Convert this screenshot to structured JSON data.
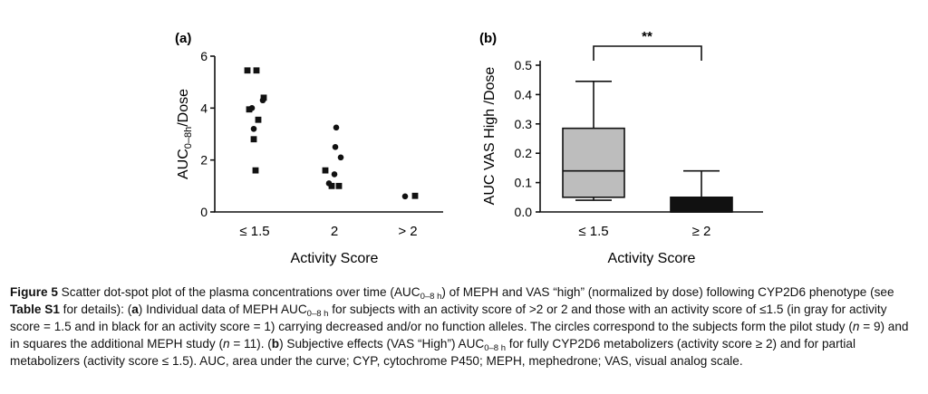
{
  "figure": {
    "panel_a_label": "(a)",
    "panel_b_label": "(b)"
  },
  "chart_data": [
    {
      "type": "scatter",
      "panel": "(a)",
      "ylabel": "AUC",
      "ylabel_sub": "0–8h",
      "ylabel_suffix": "/Dose",
      "xlabel": "Activity Score",
      "categories": [
        "≤ 1.5",
        "2",
        "> 2"
      ],
      "ylim": [
        0,
        6
      ],
      "yticks": [
        0,
        2,
        4,
        6
      ],
      "series": [
        {
          "name": "circles",
          "points": [
            {
              "x": "≤ 1.5",
              "y": 4.3
            },
            {
              "x": "≤ 1.5",
              "y": 4.0
            },
            {
              "x": "≤ 1.5",
              "y": 3.2
            },
            {
              "x": "2",
              "y": 3.25
            },
            {
              "x": "2",
              "y": 2.5
            },
            {
              "x": "2",
              "y": 2.1
            },
            {
              "x": "2",
              "y": 1.45
            },
            {
              "x": "2",
              "y": 1.1
            },
            {
              "x": "> 2",
              "y": 0.6
            }
          ]
        },
        {
          "name": "squares",
          "points": [
            {
              "x": "≤ 1.5",
              "y": 5.45
            },
            {
              "x": "≤ 1.5",
              "y": 5.45
            },
            {
              "x": "≤ 1.5",
              "y": 4.4
            },
            {
              "x": "≤ 1.5",
              "y": 3.95
            },
            {
              "x": "≤ 1.5",
              "y": 3.55
            },
            {
              "x": "≤ 1.5",
              "y": 2.8
            },
            {
              "x": "≤ 1.5",
              "y": 1.6
            },
            {
              "x": "2",
              "y": 1.6
            },
            {
              "x": "2",
              "y": 1.0
            },
            {
              "x": "2",
              "y": 1.0
            },
            {
              "x": "> 2",
              "y": 0.62
            }
          ]
        }
      ]
    },
    {
      "type": "box",
      "panel": "(b)",
      "ylabel": "AUC VAS High /Dose",
      "xlabel": "Activity Score",
      "categories": [
        "≤ 1.5",
        "≥ 2"
      ],
      "ylim": [
        0,
        0.5
      ],
      "yticks": [
        "0.0",
        "0.1",
        "0.2",
        "0.3",
        "0.4",
        "0.5"
      ],
      "boxes": [
        {
          "category": "≤ 1.5",
          "min": 0.04,
          "q1": 0.05,
          "median": 0.14,
          "q3": 0.285,
          "max": 0.445,
          "color": "#bdbdbd"
        },
        {
          "category": "≥ 2",
          "min": 0.0,
          "q1": 0.0,
          "median": 0.0,
          "q3": 0.05,
          "max": 0.14,
          "color": "#111111"
        }
      ],
      "significance": "**"
    }
  ],
  "caption": {
    "label": "Figure 5",
    "p1": " Scatter dot-spot plot of the plasma concentrations over time (AUC",
    "sub1": "0–8 h",
    "p2": ") of MEPH and VAS “high” (normalized by dose) following CYP2D6 phenotype (see ",
    "table_ref": "Table S1",
    "p3": " for details): (",
    "a_label": "a",
    "p4": ") Individual data of MEPH AUC",
    "sub2": "0–8 h",
    "p5": " for subjects with an activity score of >2 or 2 and those with an activity score of ≤1.5 (in gray for activity score = 1.5 and in black for an activity score = 1) carrying decreased and/or no function alleles. The circles correspond to the subjects form the pilot study (",
    "n1": "n",
    "p6": " = 9) and in squares the additional MEPH study (",
    "n2": "n",
    "p7": " = 11). (",
    "b_label": "b",
    "p8": ") Subjective effects (VAS “High”) AUC",
    "sub3": "0–8 h",
    "p9": " for fully CYP2D6 metabolizers (activity score ≥ 2) and for partial metabolizers (activity score ≤ 1.5). AUC, area under the curve; CYP, cytochrome P450; MEPH, mephedrone; VAS, visual analog scale."
  }
}
